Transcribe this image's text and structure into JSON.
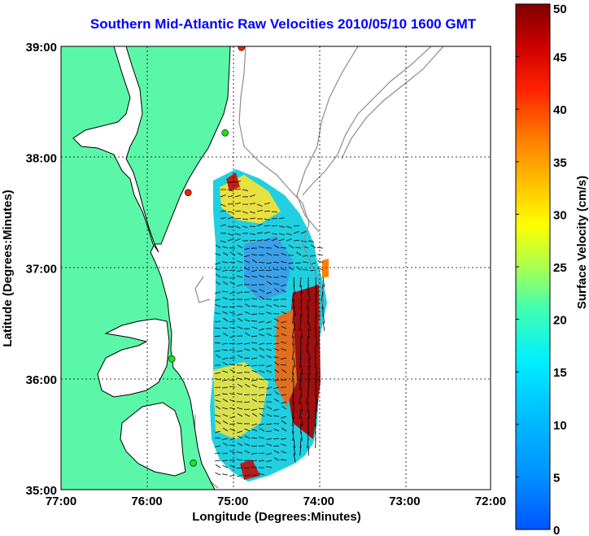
{
  "title": "Southern Mid-Atlantic Raw Velocities 2010/05/10 1600 GMT",
  "map": {
    "xlabel": "Longitude (Degrees:Minutes)",
    "ylabel": "Latitude (Degrees:Minutes)",
    "lon_ticks": [
      "77:00",
      "76:00",
      "75:00",
      "74:00",
      "73:00",
      "72:00"
    ],
    "lat_ticks": [
      "39:00",
      "38:00",
      "37:00",
      "36:00",
      "35:00"
    ],
    "lon_range": [
      -77,
      -72
    ],
    "lat_range": [
      35,
      39
    ],
    "grid": "dotted",
    "colors": {
      "land": "#5af7a8",
      "coast": "#000000",
      "bathymetry": "#8c8c8c",
      "station_green": "#22dd22",
      "station_red": "#ee2200"
    },
    "stations": [
      {
        "lon": -74.9,
        "lat": 38.99,
        "color": "red"
      },
      {
        "lon": -75.09,
        "lat": 38.22,
        "color": "green"
      },
      {
        "lon": -75.52,
        "lat": 37.68,
        "color": "red"
      },
      {
        "lon": -75.71,
        "lat": 36.18,
        "color": "green"
      },
      {
        "lon": -75.46,
        "lat": 35.24,
        "color": "green"
      }
    ]
  },
  "colorbar": {
    "label": "Surface Velocity (cm/s)",
    "ticks": [
      "0",
      "5",
      "10",
      "15",
      "20",
      "25",
      "30",
      "35",
      "40",
      "45",
      "50"
    ],
    "range": [
      0,
      50
    ],
    "colormap": "jet"
  }
}
